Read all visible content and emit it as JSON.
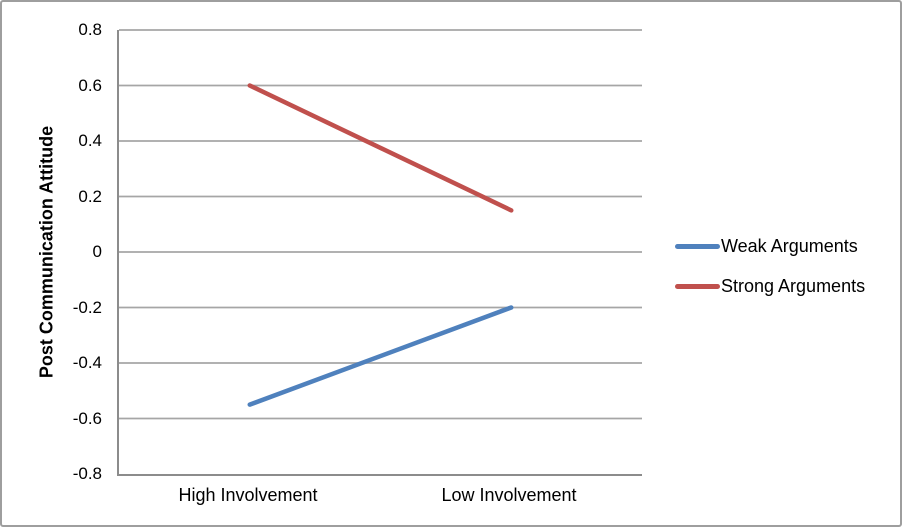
{
  "chart_data": {
    "type": "line",
    "categories": [
      "High Involvement",
      "Low Involvement"
    ],
    "series": [
      {
        "name": "Weak Arguments",
        "values": [
          -0.55,
          -0.2
        ],
        "color": "#4F81BD"
      },
      {
        "name": "Strong Arguments",
        "values": [
          0.6,
          0.15
        ],
        "color": "#C0504D"
      }
    ],
    "title": "",
    "xlabel": "",
    "ylabel": "Post Communication Attitude",
    "ylim": [
      -0.8,
      0.8
    ],
    "ytick_labels": [
      "0.8",
      "0.6",
      "0.4",
      "0.2",
      "0",
      "-0.2",
      "-0.4",
      "-0.6",
      "-0.8"
    ],
    "grid": true,
    "legend_position": "right",
    "colors": {
      "gridline": "#A6A6A6",
      "axis": "#8C8C8C",
      "frame_border": "#9E9E9E",
      "text": "#000000"
    },
    "line_width": 4.5
  }
}
